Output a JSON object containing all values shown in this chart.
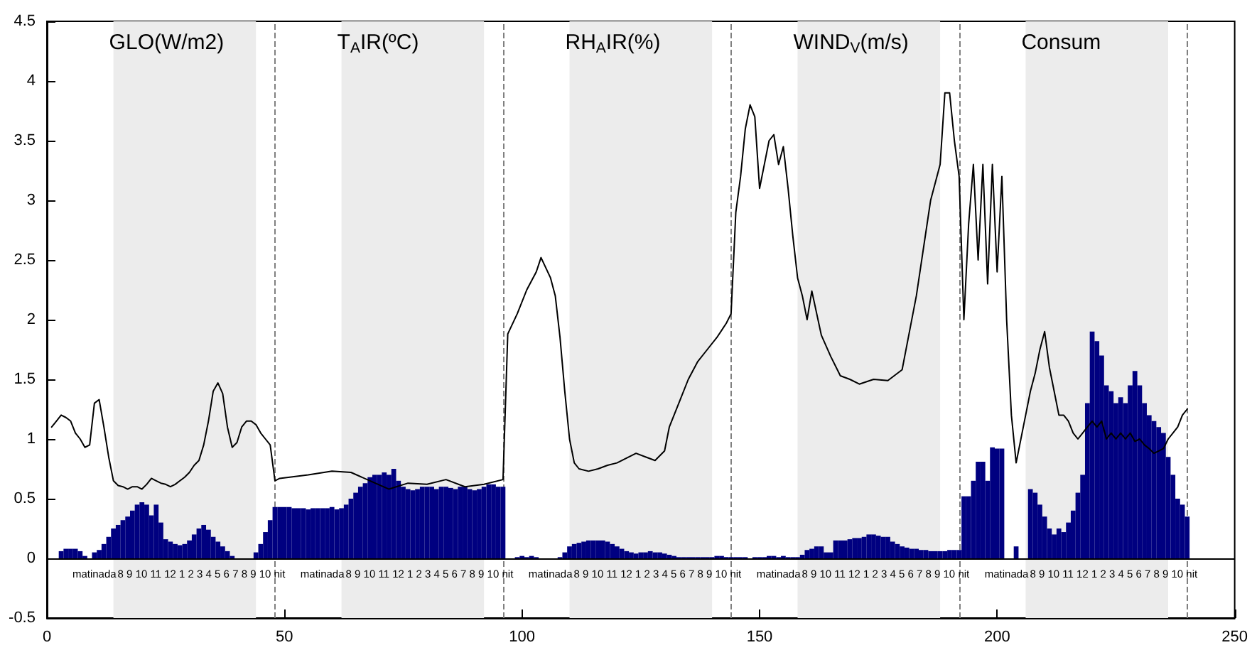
{
  "chart_data": {
    "type": "bar",
    "x": [
      1,
      2,
      3,
      4,
      5,
      6,
      7,
      8,
      9,
      10,
      11,
      12,
      13,
      14,
      15,
      16,
      17,
      18,
      19,
      20,
      21,
      22,
      23,
      24,
      25,
      26,
      27,
      28,
      29,
      30,
      31,
      32,
      33,
      34,
      35,
      36,
      37,
      38,
      39,
      40,
      41,
      42,
      43,
      44,
      45,
      46,
      47,
      48,
      49,
      50,
      51,
      52,
      53,
      54,
      55,
      56,
      57,
      58,
      59,
      60,
      61,
      62,
      63,
      64,
      65,
      66,
      67,
      68,
      69,
      70,
      71,
      72,
      73,
      74,
      75,
      76,
      77,
      78,
      79,
      80,
      81,
      82,
      83,
      84,
      85,
      86,
      87,
      88,
      89,
      90,
      91,
      92,
      93,
      94,
      95,
      96,
      97,
      98,
      99,
      100,
      101,
      102,
      103,
      104,
      105,
      106,
      107,
      108,
      109,
      110,
      111,
      112,
      113,
      114,
      115,
      116,
      117,
      118,
      119,
      120,
      121,
      122,
      123,
      124,
      125,
      126,
      127,
      128,
      129,
      130,
      131,
      132,
      133,
      134,
      135,
      136,
      137,
      138,
      139,
      140,
      141,
      142,
      143,
      144,
      145,
      146,
      147,
      148,
      149,
      150,
      151,
      152,
      153,
      154,
      155,
      156,
      157,
      158,
      159,
      160,
      161,
      162,
      163,
      164,
      165,
      166,
      167,
      168,
      169,
      170,
      171,
      172,
      173,
      174,
      175,
      176,
      177,
      178,
      179,
      180,
      181,
      182,
      183,
      184,
      185,
      186,
      187,
      188,
      189,
      190,
      191,
      192,
      193,
      194,
      195,
      196,
      197,
      198,
      199,
      200,
      201,
      202,
      203,
      204,
      205,
      206,
      207,
      208,
      209,
      210,
      211,
      212,
      213,
      214,
      215,
      216,
      217,
      218,
      219,
      220,
      221,
      222,
      223,
      224,
      225,
      226,
      227,
      228,
      229,
      230,
      231,
      232,
      233,
      234,
      235,
      236,
      237,
      238,
      239,
      240
    ],
    "series": [
      {
        "color": "#000080",
        "values": [
          0,
          0,
          0.06,
          0.08,
          0.08,
          0.08,
          0.06,
          0.02,
          0,
          0.05,
          0.07,
          0.12,
          0.18,
          0.25,
          0.28,
          0.32,
          0.35,
          0.4,
          0.45,
          0.47,
          0.45,
          0.36,
          0.45,
          0.3,
          0.16,
          0.14,
          0.12,
          0.11,
          0.12,
          0.15,
          0.2,
          0.25,
          0.28,
          0.24,
          0.18,
          0.14,
          0.1,
          0.06,
          0.02,
          0,
          0,
          0,
          0,
          0.05,
          0.12,
          0.22,
          0.32,
          0.43,
          0.43,
          0.43,
          0.43,
          0.42,
          0.42,
          0.42,
          0.41,
          0.42,
          0.42,
          0.42,
          0.42,
          0.43,
          0.41,
          0.42,
          0.45,
          0.5,
          0.55,
          0.6,
          0.63,
          0.68,
          0.7,
          0.7,
          0.72,
          0.7,
          0.75,
          0.65,
          0.6,
          0.58,
          0.57,
          0.58,
          0.6,
          0.6,
          0.6,
          0.58,
          0.6,
          0.6,
          0.59,
          0.58,
          0.6,
          0.6,
          0.58,
          0.57,
          0.58,
          0.6,
          0.62,
          0.62,
          0.6,
          0.6,
          0,
          0,
          0.01,
          0.02,
          0.01,
          0.02,
          0.01,
          0,
          0,
          0,
          0,
          0.01,
          0.05,
          0.1,
          0.12,
          0.13,
          0.14,
          0.15,
          0.15,
          0.15,
          0.15,
          0.14,
          0.12,
          0.1,
          0.08,
          0.06,
          0.05,
          0.04,
          0.05,
          0.05,
          0.06,
          0.05,
          0.05,
          0.04,
          0.03,
          0.02,
          0.01,
          0.01,
          0.01,
          0.01,
          0.01,
          0.01,
          0.01,
          0.01,
          0.02,
          0.02,
          0.01,
          0.01,
          0.01,
          0.01,
          0.01,
          0,
          0.01,
          0.01,
          0.01,
          0.02,
          0.02,
          0.01,
          0.02,
          0.01,
          0.01,
          0.01,
          0.03,
          0.07,
          0.08,
          0.1,
          0.1,
          0.05,
          0.05,
          0.15,
          0.15,
          0.15,
          0.16,
          0.17,
          0.17,
          0.18,
          0.2,
          0.2,
          0.19,
          0.18,
          0.18,
          0.14,
          0.12,
          0.1,
          0.09,
          0.08,
          0.08,
          0.07,
          0.07,
          0.06,
          0.06,
          0.06,
          0.06,
          0.07,
          0.07,
          0.07,
          0.52,
          0.52,
          0.65,
          0.81,
          0.81,
          0.65,
          0.93,
          0.92,
          0.92,
          0,
          0,
          0.1,
          0,
          0,
          0.58,
          0.55,
          0.45,
          0.35,
          0.25,
          0.2,
          0.25,
          0.22,
          0.3,
          0.4,
          0.55,
          0.7,
          1.3,
          1.9,
          1.82,
          1.7,
          1.45,
          1.4,
          1.3,
          1.35,
          1.3,
          1.45,
          1.57,
          1.45,
          1.3,
          1.2,
          1.15,
          1.1,
          1.05,
          0.85,
          0.7,
          0.5,
          0.45,
          0.35
        ]
      },
      {
        "type": "line",
        "color": "#000000",
        "x": [
          1,
          2,
          3,
          4,
          5,
          6,
          7,
          8,
          9,
          10,
          11,
          12,
          13,
          14,
          15,
          16,
          17,
          18,
          19,
          20,
          21,
          22,
          23,
          24,
          25,
          26,
          27,
          28,
          29,
          30,
          31,
          32,
          33,
          34,
          35,
          36,
          37,
          38,
          39,
          40,
          41,
          42,
          43,
          44,
          45,
          46,
          47,
          48,
          49,
          55,
          60,
          64,
          68,
          72,
          76,
          80,
          84,
          88,
          92,
          96,
          97,
          99,
          101,
          103,
          104,
          106,
          107,
          108,
          109,
          110,
          111,
          112,
          114,
          116,
          118,
          120,
          122,
          124,
          126,
          128,
          130,
          131,
          133,
          135,
          137,
          139,
          141,
          143,
          144,
          145,
          146,
          147,
          148,
          149,
          150,
          151,
          152,
          153,
          154,
          155,
          156,
          157,
          158,
          159,
          160,
          161,
          163,
          165,
          167,
          169,
          171,
          174,
          177,
          180,
          183,
          186,
          188,
          189,
          190,
          191,
          192,
          193,
          194,
          195,
          196,
          197,
          198,
          199,
          200,
          201,
          202,
          203,
          204,
          205,
          206,
          207,
          208,
          209,
          210,
          211,
          212,
          213,
          214,
          215,
          216,
          217,
          218,
          219,
          220,
          221,
          222,
          223,
          224,
          225,
          226,
          227,
          228,
          229,
          230,
          231,
          232,
          233,
          234,
          235,
          236,
          237,
          238,
          239,
          240
        ],
        "values": [
          1.1,
          1.15,
          1.2,
          1.18,
          1.15,
          1.05,
          1.0,
          0.93,
          0.95,
          1.3,
          1.33,
          1.1,
          0.85,
          0.65,
          0.61,
          0.6,
          0.58,
          0.6,
          0.6,
          0.58,
          0.62,
          0.67,
          0.65,
          0.63,
          0.62,
          0.6,
          0.62,
          0.65,
          0.68,
          0.72,
          0.78,
          0.82,
          0.95,
          1.15,
          1.4,
          1.47,
          1.38,
          1.1,
          0.93,
          0.97,
          1.1,
          1.15,
          1.15,
          1.12,
          1.05,
          1.0,
          0.95,
          0.65,
          0.67,
          0.7,
          0.73,
          0.72,
          0.65,
          0.58,
          0.63,
          0.62,
          0.66,
          0.6,
          0.62,
          0.66,
          1.88,
          2.05,
          2.25,
          2.4,
          2.52,
          2.35,
          2.2,
          1.85,
          1.4,
          1.0,
          0.8,
          0.75,
          0.73,
          0.75,
          0.78,
          0.8,
          0.84,
          0.88,
          0.85,
          0.82,
          0.9,
          1.1,
          1.3,
          1.5,
          1.65,
          1.75,
          1.85,
          1.97,
          2.05,
          2.9,
          3.2,
          3.6,
          3.8,
          3.7,
          3.1,
          3.3,
          3.5,
          3.55,
          3.3,
          3.45,
          3.1,
          2.7,
          2.35,
          2.2,
          2.0,
          2.24,
          1.87,
          1.69,
          1.53,
          1.5,
          1.46,
          1.5,
          1.49,
          1.58,
          2.2,
          3.0,
          3.3,
          3.9,
          3.9,
          3.5,
          3.2,
          2.0,
          2.8,
          3.3,
          2.5,
          3.3,
          2.3,
          3.3,
          2.4,
          3.2,
          2.0,
          1.2,
          0.8,
          1.0,
          1.2,
          1.4,
          1.55,
          1.75,
          1.9,
          1.6,
          1.4,
          1.2,
          1.2,
          1.15,
          1.05,
          1.0,
          1.05,
          1.1,
          1.15,
          1.1,
          1.15,
          1.0,
          1.05,
          1.0,
          1.05,
          1.0,
          1.05,
          0.98,
          1.0,
          0.95,
          0.92,
          0.88,
          0.9,
          0.92,
          1.0,
          1.05,
          1.1,
          1.2,
          1.25
        ]
      }
    ],
    "xlim": [
      0,
      250
    ],
    "xticks": [
      0,
      50,
      100,
      150,
      200,
      250
    ],
    "ylim": [
      -0.5,
      4.5
    ],
    "yticks": [
      -0.5,
      0,
      0.5,
      1,
      1.5,
      2,
      2.5,
      3,
      3.5,
      4,
      4.5
    ],
    "bands": [
      {
        "axis": "x",
        "from": 14,
        "to": 44,
        "color": "#ececec"
      },
      {
        "axis": "x",
        "from": 62,
        "to": 92,
        "color": "#ececec"
      },
      {
        "axis": "x",
        "from": 110,
        "to": 140,
        "color": "#ececec"
      },
      {
        "axis": "x",
        "from": 158,
        "to": 188,
        "color": "#ececec"
      },
      {
        "axis": "x",
        "from": 206,
        "to": 236,
        "color": "#ececec"
      }
    ],
    "ref_lines": [
      {
        "axis": "y",
        "value": 0,
        "color": "#000000",
        "line_style": "solid"
      },
      {
        "axis": "x",
        "value": 48,
        "color": "#808080",
        "line_style": "dashed"
      },
      {
        "axis": "x",
        "value": 96,
        "color": "#808080",
        "line_style": "dashed"
      },
      {
        "axis": "x",
        "value": 144,
        "color": "#808080",
        "line_style": "dashed"
      },
      {
        "axis": "x",
        "value": 192,
        "color": "#808080",
        "line_style": "dashed"
      },
      {
        "axis": "x",
        "value": 240,
        "color": "#808080",
        "line_style": "dashed"
      }
    ],
    "annotations": [
      "GLO(W/m2)",
      "T$_{A}$IR(ºC)",
      "RH$_{A}$IR(%)",
      "WIND$_{V}$(m/s)",
      "Consum",
      "matinada",
      "8 9 10 11 12 1 2 3 4 5 6 7 8 9 10 nit",
      "matinada",
      "8 9 10 11 12 1 2 3 4 5 6 7 8 9 10 nit",
      "matinada",
      "8 9 10 11 12 1 2 3 4 5 6 7 8 9 10 nit",
      "matinada",
      "8 9 10 11 12 1 2 3 4 5 6 7 8 9 10 nit",
      "matinada",
      "8 9 10 11 12 1 2 3 4 5 6 7 8 9 10 nit"
    ],
    "grid": false,
    "marker": "none",
    "line_style": "solid"
  }
}
